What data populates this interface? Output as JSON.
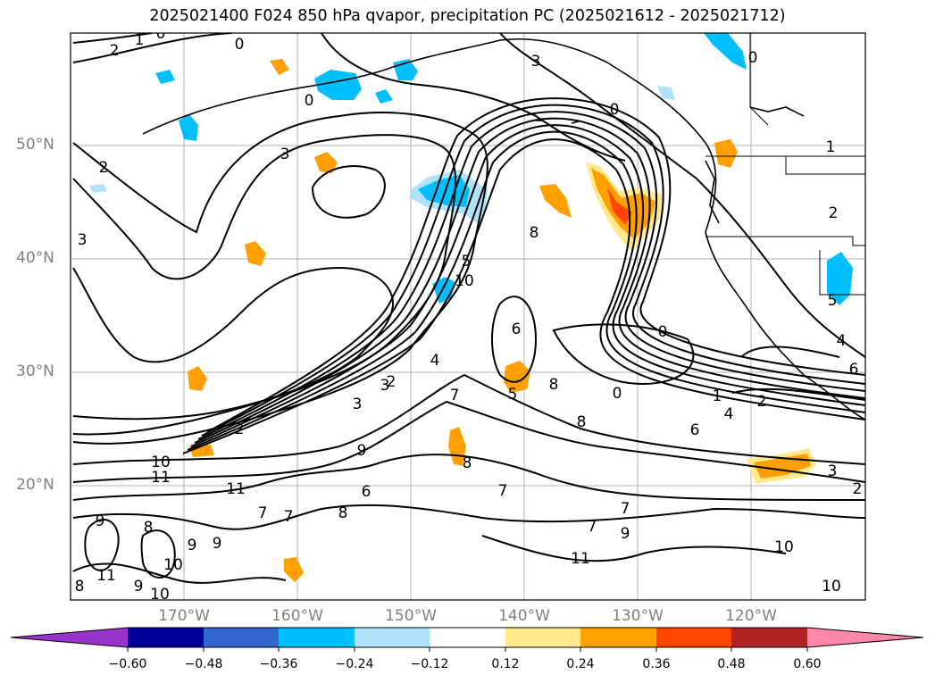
{
  "title": "2025021400 F024 850 hPa qvapor, precipitation PC (2025021612 - 2025021712)",
  "lat_ticks": [
    "50°N",
    "40°N",
    "30°N",
    "20°N"
  ],
  "lon_ticks": [
    "170°W",
    "160°W",
    "150°W",
    "140°W",
    "130°W",
    "120°W"
  ],
  "colorbar": {
    "tick_labels": [
      "−0.60",
      "−0.48",
      "−0.36",
      "−0.24",
      "−0.12",
      "0.12",
      "0.24",
      "0.36",
      "0.48",
      "0.60"
    ],
    "colors": [
      "#9933cc",
      "#000099",
      "#3366cc",
      "#00bfff",
      "#aee3fa",
      "#ffffff",
      "#ffe98c",
      "#ffa000",
      "#ff4500",
      "#b22222",
      "#ff88aa"
    ]
  },
  "contour_labels": [
    "0",
    "1",
    "2",
    "0",
    "3",
    "2",
    "3",
    "3",
    "8",
    "5",
    "4",
    "3",
    "2",
    "7",
    "9",
    "10",
    "11",
    "11",
    "7",
    "8",
    "9",
    "10",
    "9",
    "11",
    "9",
    "8",
    "10",
    "6",
    "8",
    "7",
    "0",
    "3",
    "2",
    "5",
    "7",
    "6",
    "8",
    "7",
    "1",
    "2",
    "4",
    "6",
    "0",
    "5",
    "4",
    "6",
    "3",
    "2",
    "7",
    "9",
    "10",
    "11",
    "10",
    "9",
    "10",
    "2",
    "8",
    "8",
    "1",
    "0",
    "0",
    "0"
  ]
}
